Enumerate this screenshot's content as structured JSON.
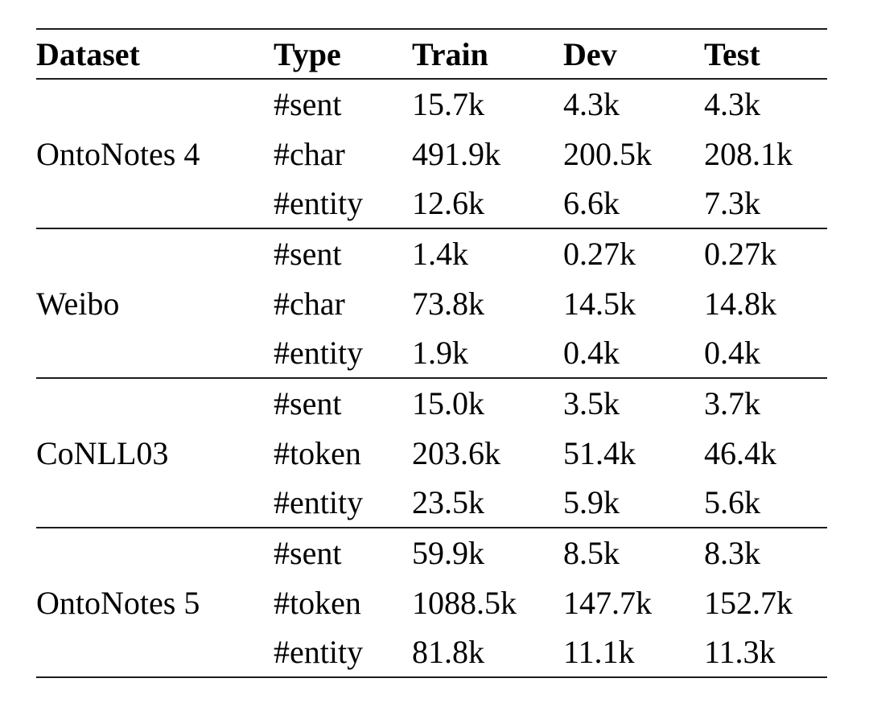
{
  "style": {
    "text_color": "#000000",
    "rule_color": "#1c1c1c",
    "background": "#ffffff"
  },
  "table": {
    "headers": [
      "Dataset",
      "Type",
      "Train",
      "Dev",
      "Test"
    ],
    "sections": [
      {
        "dataset": "OntoNotes 4",
        "rows": [
          {
            "type": "#sent",
            "train": "15.7k",
            "dev": "4.3k",
            "test": "4.3k"
          },
          {
            "type": "#char",
            "train": "491.9k",
            "dev": "200.5k",
            "test": "208.1k"
          },
          {
            "type": "#entity",
            "train": "12.6k",
            "dev": "6.6k",
            "test": "7.3k"
          }
        ]
      },
      {
        "dataset": "Weibo",
        "rows": [
          {
            "type": "#sent",
            "train": "1.4k",
            "dev": "0.27k",
            "test": "0.27k"
          },
          {
            "type": "#char",
            "train": "73.8k",
            "dev": "14.5k",
            "test": "14.8k"
          },
          {
            "type": "#entity",
            "train": "1.9k",
            "dev": "0.4k",
            "test": "0.4k"
          }
        ]
      },
      {
        "dataset": "CoNLL03",
        "rows": [
          {
            "type": "#sent",
            "train": "15.0k",
            "dev": "3.5k",
            "test": "3.7k"
          },
          {
            "type": "#token",
            "train": "203.6k",
            "dev": "51.4k",
            "test": "46.4k"
          },
          {
            "type": "#entity",
            "train": "23.5k",
            "dev": "5.9k",
            "test": "5.6k"
          }
        ]
      },
      {
        "dataset": "OntoNotes 5",
        "rows": [
          {
            "type": "#sent",
            "train": "59.9k",
            "dev": "8.5k",
            "test": "8.3k"
          },
          {
            "type": "#token",
            "train": "1088.5k",
            "dev": "147.7k",
            "test": "152.7k"
          },
          {
            "type": "#entity",
            "train": "81.8k",
            "dev": "11.1k",
            "test": "11.3k"
          }
        ]
      }
    ]
  }
}
